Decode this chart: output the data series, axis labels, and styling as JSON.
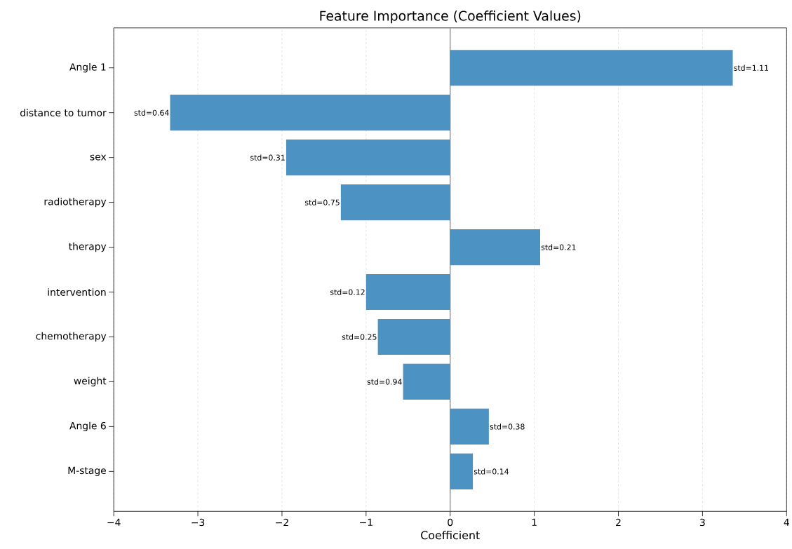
{
  "chart_data": {
    "type": "bar",
    "orientation": "horizontal",
    "title": "Feature Importance (Coefficient Values)",
    "xlabel": "Coefficient",
    "categories": [
      "Angle 1",
      "distance to tumor",
      "sex",
      "radiotherapy",
      "therapy",
      "intervention",
      "chemotherapy",
      "weight",
      "Angle 6",
      "M-stage"
    ],
    "values": [
      3.36,
      -3.33,
      -1.95,
      -1.3,
      1.07,
      -1.0,
      -0.86,
      -0.56,
      0.46,
      0.27
    ],
    "annotations": [
      {
        "text": "std=1.11",
        "x": 3.36,
        "y": "Angle 1"
      },
      {
        "text": "std=0.64",
        "x": -3.33,
        "y": "distance to tumor"
      },
      {
        "text": "std=0.31",
        "x": -1.95,
        "y": "sex"
      },
      {
        "text": "std=0.75",
        "x": -1.3,
        "y": "radiotherapy"
      },
      {
        "text": "std=0.21",
        "x": 1.07,
        "y": "therapy"
      },
      {
        "text": "std=0.12",
        "x": -1.0,
        "y": "intervention"
      },
      {
        "text": "std=0.25",
        "x": -0.86,
        "y": "chemotherapy"
      },
      {
        "text": "std=0.94",
        "x": -0.56,
        "y": "weight"
      },
      {
        "text": "std=0.38",
        "x": 0.46,
        "y": "Angle 6"
      },
      {
        "text": "std=0.14",
        "x": 0.27,
        "y": "M-stage"
      }
    ],
    "color": "#4c92c3",
    "xlim": [
      -4,
      4
    ],
    "xticks": [
      {
        "value": -4,
        "label": "−4"
      },
      {
        "value": -3,
        "label": "−3"
      },
      {
        "value": -2,
        "label": "−2"
      },
      {
        "value": -1,
        "label": "−1"
      },
      0,
      1,
      2,
      3,
      4
    ],
    "grid": "x",
    "ref_lines": [
      {
        "axis": "x",
        "value": 0,
        "color": "#808080"
      }
    ]
  }
}
